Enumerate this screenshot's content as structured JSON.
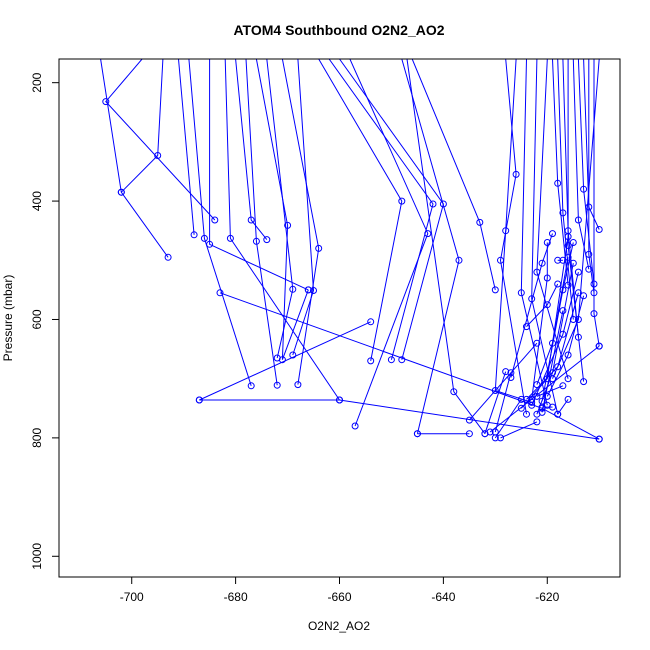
{
  "chart_data": {
    "type": "line",
    "title": "ATOM4 Southbound O2N2_AO2",
    "xlabel": "O2N2_AO2",
    "ylabel": "Pressure (mbar)",
    "xlim": [
      -714,
      -606
    ],
    "ylim": [
      1035,
      160
    ],
    "y_reversed": true,
    "grid": false,
    "series_color": "#0000ff",
    "x_ticks": [
      -700,
      -680,
      -660,
      -640,
      -620
    ],
    "y_ticks": [
      200,
      400,
      600,
      800,
      1000
    ],
    "series": [
      {
        "points": [
          [
            -698,
            160
          ],
          [
            -705,
            232
          ],
          [
            -684,
            432
          ]
        ]
      },
      {
        "points": [
          [
            -706,
            160
          ],
          [
            -702,
            385
          ],
          [
            -693,
            495
          ]
        ]
      },
      {
        "points": [
          [
            -694,
            160
          ],
          [
            -695,
            323
          ],
          [
            -702,
            385
          ]
        ]
      },
      {
        "points": [
          [
            -691,
            160
          ],
          [
            -688,
            457
          ]
        ]
      },
      {
        "points": [
          [
            -689,
            160
          ],
          [
            -686,
            463
          ],
          [
            -677,
            712
          ]
        ]
      },
      {
        "points": [
          [
            -685,
            160
          ],
          [
            -685,
            473
          ],
          [
            -666,
            550
          ]
        ]
      },
      {
        "points": [
          [
            -682,
            160
          ],
          [
            -681,
            463
          ],
          [
            -660,
            736
          ]
        ]
      },
      {
        "points": [
          [
            -680,
            160
          ],
          [
            -677,
            432
          ],
          [
            -674,
            465
          ]
        ]
      },
      {
        "points": [
          [
            -678,
            160
          ],
          [
            -676,
            468
          ],
          [
            -672,
            711
          ]
        ]
      },
      {
        "points": [
          [
            -676,
            160
          ],
          [
            -670,
            441
          ],
          [
            -671,
            668
          ],
          [
            -666,
            550
          ]
        ]
      },
      {
        "points": [
          [
            -674,
            160
          ],
          [
            -669,
            549
          ],
          [
            -672,
            665
          ]
        ]
      },
      {
        "points": [
          [
            -671,
            160
          ],
          [
            -664,
            480
          ],
          [
            -668,
            710
          ]
        ]
      },
      {
        "points": [
          [
            -668,
            160
          ],
          [
            -665,
            551
          ],
          [
            -669,
            660
          ]
        ]
      },
      {
        "points": [
          [
            -664,
            160
          ],
          [
            -648,
            400
          ],
          [
            -654,
            670
          ]
        ]
      },
      {
        "points": [
          [
            -662,
            160
          ],
          [
            -642,
            405
          ],
          [
            -650,
            668
          ]
        ]
      },
      {
        "points": [
          [
            -660,
            160
          ],
          [
            -640,
            405
          ],
          [
            -648,
            668
          ]
        ]
      },
      {
        "points": [
          [
            -658,
            160
          ],
          [
            -643,
            455
          ],
          [
            -657,
            780
          ]
        ]
      },
      {
        "points": [
          [
            -648,
            160
          ],
          [
            -637,
            500
          ],
          [
            -645,
            793
          ]
        ]
      },
      {
        "points": [
          [
            -647,
            160
          ],
          [
            -638,
            722
          ],
          [
            -632,
            793
          ]
        ]
      },
      {
        "points": [
          [
            -646,
            160
          ],
          [
            -633,
            436
          ],
          [
            -630,
            550
          ]
        ]
      },
      {
        "points": [
          [
            -654,
            604
          ],
          [
            -687,
            736
          ]
        ]
      },
      {
        "points": [
          [
            -687,
            736
          ],
          [
            -660,
            736
          ],
          [
            -610,
            802
          ]
        ]
      },
      {
        "points": [
          [
            -683,
            555
          ],
          [
            -621,
            750
          ],
          [
            -610,
            802
          ]
        ]
      },
      {
        "points": [
          [
            -632,
            793
          ],
          [
            -628,
            688
          ]
        ]
      },
      {
        "points": [
          [
            -630,
            800
          ],
          [
            -625,
            735
          ]
        ]
      },
      {
        "points": [
          [
            -629,
            800
          ],
          [
            -622,
            773
          ]
        ]
      },
      {
        "points": [
          [
            -628,
            160
          ],
          [
            -626,
            355
          ],
          [
            -629,
            500
          ],
          [
            -624,
            760
          ]
        ]
      },
      {
        "points": [
          [
            -626,
            160
          ],
          [
            -628,
            450
          ],
          [
            -630,
            720
          ],
          [
            -623,
            740
          ]
        ]
      },
      {
        "points": [
          [
            -624,
            160
          ],
          [
            -625,
            555
          ],
          [
            -620,
            745
          ]
        ]
      },
      {
        "points": [
          [
            -622,
            160
          ],
          [
            -623,
            565
          ],
          [
            -618,
            760
          ]
        ]
      },
      {
        "points": [
          [
            -620,
            160
          ],
          [
            -622,
            520
          ],
          [
            -616,
            700
          ]
        ]
      },
      {
        "points": [
          [
            -619,
            160
          ],
          [
            -618,
            370
          ],
          [
            -616,
            542
          ]
        ]
      },
      {
        "points": [
          [
            -618,
            160
          ],
          [
            -617,
            420
          ],
          [
            -615,
            600
          ]
        ]
      },
      {
        "points": [
          [
            -617,
            160
          ],
          [
            -616,
            450
          ],
          [
            -614,
            630
          ]
        ]
      },
      {
        "points": [
          [
            -616,
            160
          ],
          [
            -616,
            475
          ],
          [
            -613,
            705
          ]
        ]
      },
      {
        "points": [
          [
            -615,
            160
          ],
          [
            -614,
            432
          ],
          [
            -612,
            515
          ]
        ]
      },
      {
        "points": [
          [
            -614,
            160
          ],
          [
            -613,
            380
          ],
          [
            -611,
            540
          ]
        ]
      },
      {
        "points": [
          [
            -613,
            160
          ],
          [
            -612,
            410
          ],
          [
            -610,
            448
          ]
        ]
      },
      {
        "points": [
          [
            -612,
            160
          ],
          [
            -612,
            490
          ],
          [
            -611,
            555
          ]
        ]
      },
      {
        "points": [
          [
            -611,
            160
          ],
          [
            -611,
            590
          ],
          [
            -610,
            645
          ]
        ]
      },
      {
        "points": [
          [
            -610,
            160
          ],
          [
            -614,
            600
          ],
          [
            -619,
            700
          ]
        ]
      },
      {
        "points": [
          [
            -617,
            585
          ],
          [
            -621,
            757
          ]
        ]
      },
      {
        "points": [
          [
            -616,
            460
          ],
          [
            -620,
            700
          ],
          [
            -625,
            750
          ]
        ]
      },
      {
        "points": [
          [
            -615,
            505
          ],
          [
            -619,
            690
          ],
          [
            -622,
            760
          ]
        ]
      },
      {
        "points": [
          [
            -614,
            520
          ],
          [
            -617,
            625
          ],
          [
            -623,
            745
          ]
        ]
      },
      {
        "points": [
          [
            -618,
            540
          ],
          [
            -620,
            575
          ],
          [
            -624,
            612
          ]
        ]
      },
      {
        "points": [
          [
            -619,
            455
          ],
          [
            -621,
            505
          ],
          [
            -627,
            698
          ]
        ]
      },
      {
        "points": [
          [
            -620,
            470
          ],
          [
            -620,
            530
          ],
          [
            -623,
            735
          ]
        ]
      },
      {
        "points": [
          [
            -615,
            470
          ],
          [
            -617,
            550
          ],
          [
            -621,
            738
          ]
        ]
      },
      {
        "points": [
          [
            -613,
            560
          ],
          [
            -616,
            660
          ],
          [
            -620,
            730
          ]
        ]
      },
      {
        "points": [
          [
            -616,
            495
          ],
          [
            -619,
            640
          ],
          [
            -622,
            710
          ]
        ]
      },
      {
        "points": [
          [
            -614,
            555
          ],
          [
            -618,
            680
          ],
          [
            -624,
            735
          ]
        ]
      },
      {
        "points": [
          [
            -635,
            793
          ],
          [
            -645,
            793
          ]
        ]
      },
      {
        "points": [
          [
            -631,
            790
          ],
          [
            -610,
            645
          ]
        ]
      },
      {
        "points": [
          [
            -635,
            770
          ],
          [
            -622,
            640
          ]
        ]
      },
      {
        "points": [
          [
            -617,
            500
          ],
          [
            -618,
            500
          ]
        ]
      },
      {
        "points": [
          [
            -630,
            790
          ],
          [
            -627,
            690
          ]
        ]
      },
      {
        "points": [
          [
            -622,
            730
          ],
          [
            -617,
            712
          ]
        ]
      },
      {
        "points": [
          [
            -618,
            760
          ],
          [
            -616,
            735
          ]
        ]
      },
      {
        "points": [
          [
            -621,
            748
          ],
          [
            -619,
            748
          ]
        ]
      }
    ]
  }
}
